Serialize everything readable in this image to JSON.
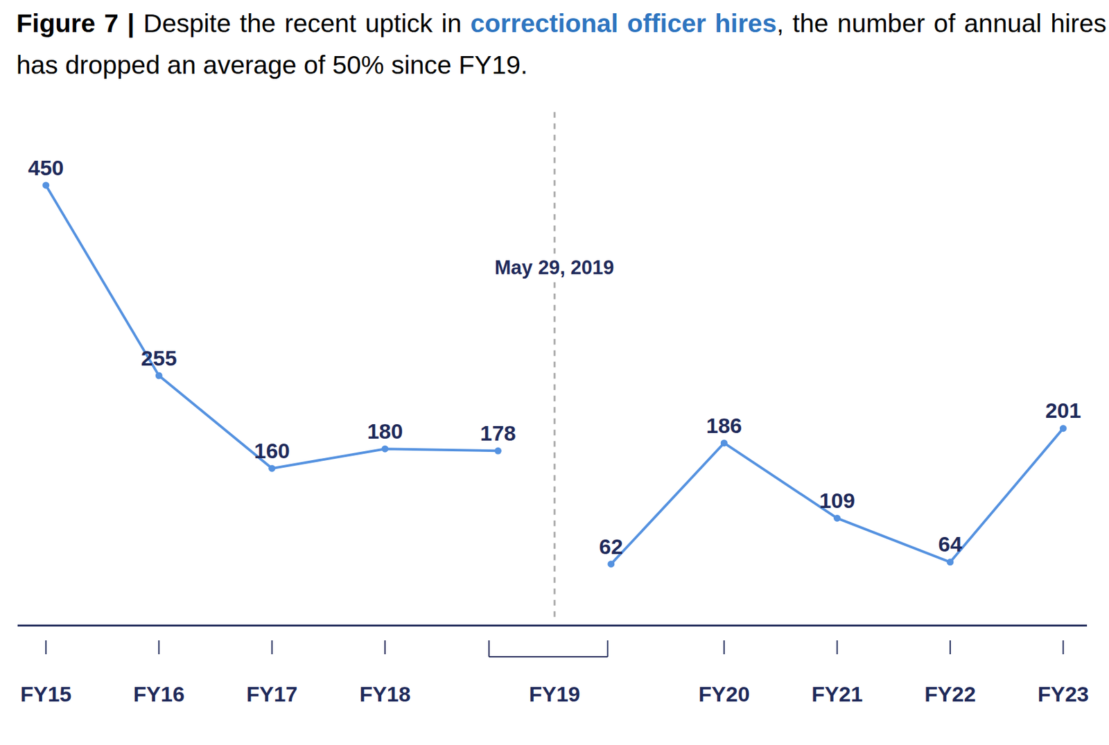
{
  "chart_data": {
    "type": "line",
    "title": "Figure 7 | Despite the recent uptick in correctional officer hires, the number of annual hires has dropped an average of 50% since FY19.",
    "title_highlight": "correctional officer hires",
    "categories": [
      "FY15",
      "FY16",
      "FY17",
      "FY18",
      "FY19",
      "FY19",
      "FY20",
      "FY21",
      "FY22",
      "FY23"
    ],
    "series": [
      {
        "color": "#5592e0",
        "values": [
          450,
          255,
          160,
          180,
          178,
          null,
          null,
          null,
          null,
          null
        ]
      },
      {
        "color": "#5592e0",
        "values": [
          null,
          null,
          null,
          null,
          null,
          62,
          186,
          109,
          64,
          201
        ]
      }
    ],
    "annotations": [
      {
        "text": "May 29, 2019",
        "category": "FY19"
      }
    ],
    "ylim": [
      0,
      530
    ],
    "data_labels": true,
    "tick_labels": "x",
    "grid": false,
    "marker": "circle"
  }
}
